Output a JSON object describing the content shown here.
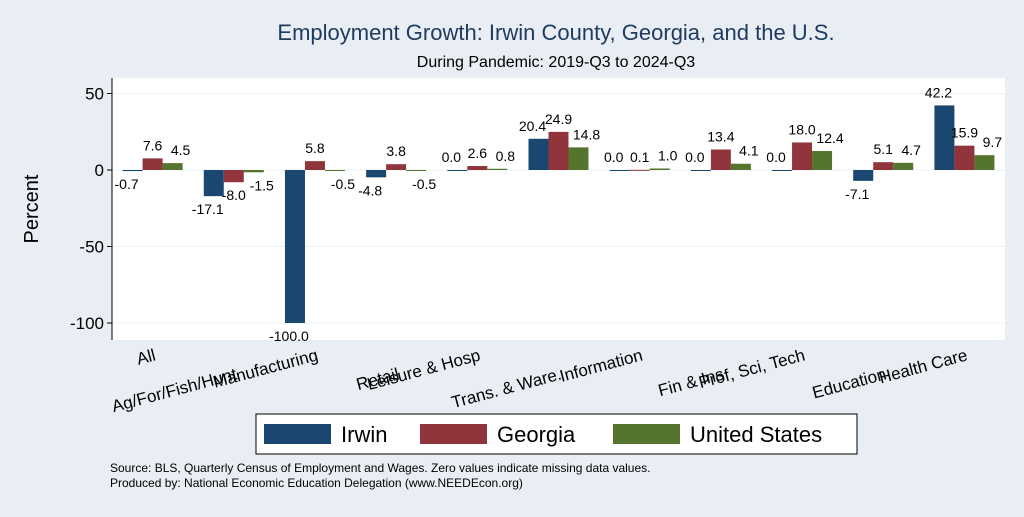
{
  "chart_data": {
    "type": "bar",
    "title": "Employment Growth: Irwin County, Georgia, and the U.S.",
    "subtitle": "During Pandemic: 2019-Q3 to 2024-Q3",
    "xlabel": "",
    "ylabel": "Percent",
    "ylim": [
      -110,
      60
    ],
    "yticks": [
      50,
      0,
      -50,
      -100
    ],
    "grid": true,
    "legend_position": "bottom",
    "categories": [
      "All",
      "Ag/For/Fish/Hunt",
      "Manufacturing",
      "Retail",
      "Leisure & Hosp",
      "Trans. & Ware.",
      "Information",
      "Fin & Ins",
      "Prof, Sci, Tech",
      "Education",
      "Health Care"
    ],
    "series": [
      {
        "name": "Irwin",
        "color": "#1a476f",
        "values": [
          -0.7,
          -17.1,
          -100.0,
          -4.8,
          0.0,
          20.4,
          0.0,
          0.0,
          0.0,
          -7.1,
          42.2
        ],
        "labels": [
          "-0.7",
          "-17.1",
          "-100.0",
          "-4.8",
          "0.0",
          "20.4",
          "0.0",
          "0.0",
          "0.0",
          "-7.1",
          "42.2"
        ]
      },
      {
        "name": "Georgia",
        "color": "#90353b",
        "values": [
          7.6,
          -8.0,
          5.8,
          3.8,
          2.6,
          24.9,
          0.1,
          13.4,
          18.0,
          5.1,
          15.9
        ],
        "labels": [
          "7.6",
          "-8.0",
          "5.8",
          "3.8",
          "2.6",
          "24.9",
          "0.1",
          "13.4",
          "18.0",
          "5.1",
          "15.9"
        ]
      },
      {
        "name": "United States",
        "color": "#55752f",
        "values": [
          4.5,
          -1.5,
          -0.5,
          -0.5,
          0.8,
          14.8,
          1.0,
          4.1,
          12.4,
          4.7,
          9.7
        ],
        "labels": [
          "4.5",
          "-1.5",
          "-0.5",
          "-0.5",
          "0.8",
          "14.8",
          "1.0",
          "4.1",
          "12.4",
          "4.7",
          "9.7"
        ]
      }
    ]
  },
  "footnotes": {
    "source": "Source: BLS, Quarterly Census of Employment and Wages. Zero values indicate missing data values.",
    "produced": "Produced by: National Economic Education Delegation (www.NEEDEcon.org)"
  },
  "colors": {
    "background": "#e8eef3",
    "plot_background": "#ffffff",
    "title": "#1e3a5f",
    "grid": "#eaf2f3"
  }
}
